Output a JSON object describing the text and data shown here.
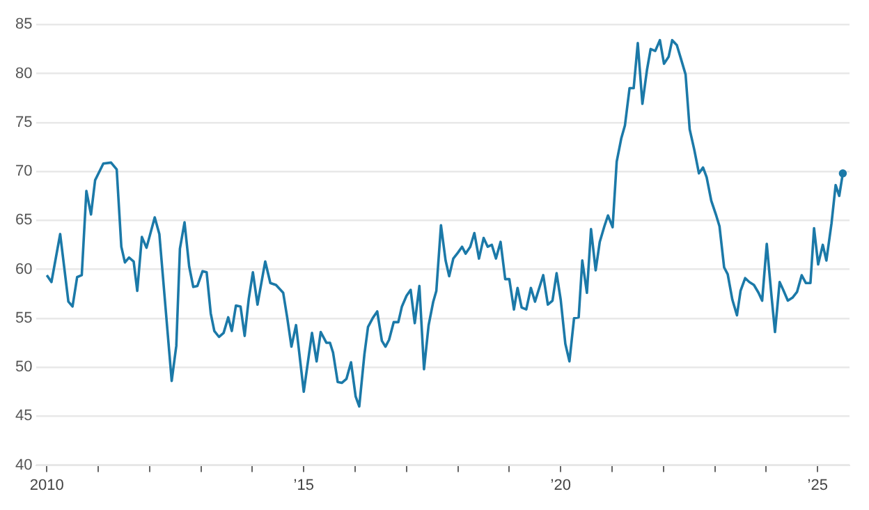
{
  "chart_data": {
    "type": "line",
    "x": [
      2010.0,
      2010.09,
      2010.26,
      2010.42,
      2010.5,
      2010.59,
      2010.68,
      2010.77,
      2010.86,
      2010.94,
      2011.1,
      2011.25,
      2011.36,
      2011.45,
      2011.52,
      2011.6,
      2011.69,
      2011.76,
      2011.85,
      2011.94,
      2012.1,
      2012.19,
      2012.43,
      2012.52,
      2012.59,
      2012.68,
      2012.77,
      2012.85,
      2012.93,
      2013.03,
      2013.11,
      2013.19,
      2013.26,
      2013.35,
      2013.44,
      2013.53,
      2013.6,
      2013.68,
      2013.77,
      2013.85,
      2013.93,
      2014.01,
      2014.1,
      2014.25,
      2014.35,
      2014.46,
      2014.6,
      2014.68,
      2014.76,
      2014.85,
      2015.0,
      2015.16,
      2015.25,
      2015.33,
      2015.44,
      2015.51,
      2015.57,
      2015.66,
      2015.74,
      2015.83,
      2015.92,
      2016.01,
      2016.08,
      2016.18,
      2016.25,
      2016.34,
      2016.43,
      2016.52,
      2016.59,
      2016.66,
      2016.75,
      2016.84,
      2016.91,
      2017.0,
      2017.08,
      2017.16,
      2017.25,
      2017.34,
      2017.43,
      2017.52,
      2017.58,
      2017.67,
      2017.76,
      2017.83,
      2017.91,
      2018.0,
      2018.08,
      2018.15,
      2018.24,
      2018.32,
      2018.41,
      2018.5,
      2018.58,
      2018.66,
      2018.74,
      2018.83,
      2018.92,
      2019.0,
      2019.09,
      2019.16,
      2019.24,
      2019.33,
      2019.42,
      2019.5,
      2019.66,
      2019.75,
      2019.84,
      2019.92,
      2020.0,
      2020.09,
      2020.17,
      2020.26,
      2020.35,
      2020.42,
      2020.51,
      2020.59,
      2020.68,
      2020.76,
      2020.85,
      2020.92,
      2021.01,
      2021.09,
      2021.18,
      2021.25,
      2021.34,
      2021.42,
      2021.5,
      2021.59,
      2021.68,
      2021.75,
      2021.84,
      2021.93,
      2022.01,
      2022.1,
      2022.17,
      2022.26,
      2022.34,
      2022.43,
      2022.51,
      2022.6,
      2022.69,
      2022.77,
      2022.84,
      2022.93,
      2023.02,
      2023.09,
      2023.18,
      2023.25,
      2023.34,
      2023.43,
      2023.5,
      2023.59,
      2023.67,
      2023.76,
      2023.85,
      2023.92,
      2024.01,
      2024.1,
      2024.17,
      2024.26,
      2024.33,
      2024.42,
      2024.51,
      2024.6,
      2024.69,
      2024.77,
      2024.86,
      2024.93,
      2025.01,
      2025.1,
      2025.17,
      2025.27,
      2025.35,
      2025.42,
      2025.49
    ],
    "series": [
      {
        "color": "#1b79a8",
        "values": [
          59.4,
          58.7,
          63.6,
          56.7,
          56.2,
          59.2,
          59.4,
          68.0,
          65.6,
          69.1,
          70.8,
          70.9,
          70.2,
          62.3,
          60.7,
          61.2,
          60.8,
          57.8,
          63.3,
          62.2,
          65.3,
          63.6,
          48.6,
          52.2,
          62.1,
          64.8,
          60.3,
          58.2,
          58.3,
          59.8,
          59.7,
          55.5,
          53.7,
          53.1,
          53.5,
          55.1,
          53.7,
          56.3,
          56.2,
          53.2,
          57.0,
          59.7,
          56.4,
          60.8,
          58.6,
          58.4,
          57.6,
          55.0,
          52.1,
          54.3,
          47.5,
          53.5,
          50.6,
          53.6,
          52.5,
          52.5,
          51.5,
          48.5,
          48.4,
          48.8,
          50.5,
          47.0,
          46.0,
          51.3,
          54.1,
          55.0,
          55.7,
          52.7,
          52.1,
          52.8,
          54.6,
          54.6,
          56.2,
          57.3,
          57.9,
          54.5,
          58.3,
          49.8,
          54.3,
          56.7,
          57.8,
          64.5,
          60.9,
          59.3,
          61.1,
          61.7,
          62.3,
          61.6,
          62.3,
          63.7,
          61.1,
          63.2,
          62.3,
          62.5,
          61.1,
          62.8,
          59.0,
          59.0,
          55.9,
          58.1,
          56.1,
          55.9,
          58.1,
          56.7,
          59.4,
          56.4,
          56.8,
          59.6,
          56.9,
          52.4,
          50.6,
          55.0,
          55.1,
          60.9,
          57.6,
          64.1,
          59.9,
          62.8,
          64.4,
          65.5,
          64.3,
          71.0,
          73.4,
          74.7,
          78.5,
          78.5,
          83.1,
          76.9,
          80.4,
          82.5,
          82.3,
          83.4,
          81.0,
          81.7,
          83.4,
          82.9,
          81.5,
          79.9,
          74.3,
          72.2,
          69.8,
          70.4,
          69.4,
          67.0,
          65.6,
          64.4,
          60.2,
          59.5,
          56.9,
          55.3,
          57.8,
          59.1,
          58.7,
          58.4,
          57.6,
          56.8,
          62.6,
          57.4,
          53.6,
          58.7,
          57.9,
          56.8,
          57.1,
          57.7,
          59.4,
          58.6,
          58.6,
          64.2,
          60.5,
          62.5,
          60.9,
          64.7,
          68.6,
          67.5,
          69.8
        ]
      }
    ],
    "xlim": [
      2009.8,
      2025.62
    ],
    "xticks": [
      {
        "value": 2010,
        "label": "2010"
      },
      {
        "value": 2011,
        "label": null
      },
      {
        "value": 2012,
        "label": null
      },
      {
        "value": 2013,
        "label": null
      },
      {
        "value": 2014,
        "label": null
      },
      {
        "value": 2015,
        "label": "’15"
      },
      {
        "value": 2016,
        "label": null
      },
      {
        "value": 2017,
        "label": null
      },
      {
        "value": 2018,
        "label": null
      },
      {
        "value": 2019,
        "label": null
      },
      {
        "value": 2020,
        "label": "’20"
      },
      {
        "value": 2021,
        "label": null
      },
      {
        "value": 2022,
        "label": null
      },
      {
        "value": 2023,
        "label": null
      },
      {
        "value": 2024,
        "label": null
      },
      {
        "value": 2025,
        "label": "’25"
      }
    ],
    "ylim": [
      40,
      85
    ],
    "yticks": [
      40,
      45,
      50,
      55,
      60,
      65,
      70,
      75,
      80,
      85
    ],
    "grid": "y",
    "line_style": "solid",
    "legend": false
  }
}
